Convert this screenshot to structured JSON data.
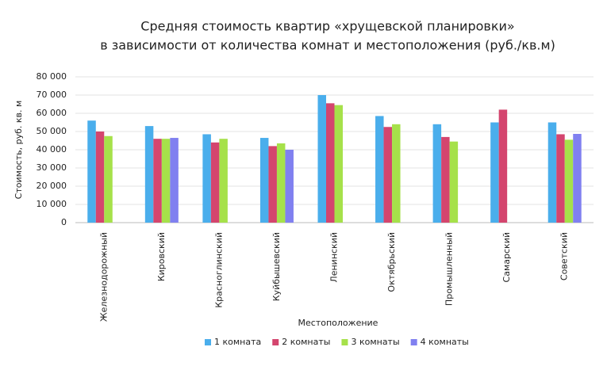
{
  "chart_data": {
    "type": "bar",
    "title": [
      "Средняя стоимость квартир «хрущевской планировки»",
      "в зависимости от количества комнат и местоположения (руб./кв.м)"
    ],
    "x_label": "Местоположение",
    "y_label": "Стоимость, руб. кв. м",
    "categories": [
      "Железнодорожный",
      "Кировский",
      "Красноглинский",
      "Куйбышевский",
      "Ленинский",
      "Октябрьский",
      "Промышленный",
      "Самарский",
      "Советский"
    ],
    "series": [
      {
        "name": "1 комната",
        "color": "#4aaeec",
        "values": [
          56000,
          53000,
          48500,
          46500,
          70000,
          58500,
          54000,
          55000,
          55000
        ]
      },
      {
        "name": "2 комнаты",
        "color": "#d4456e",
        "values": [
          50000,
          46000,
          44000,
          42000,
          65500,
          52500,
          47000,
          62000,
          48500
        ]
      },
      {
        "name": "3 комнаты",
        "color": "#a6e14a",
        "values": [
          47500,
          46000,
          46000,
          43500,
          64500,
          54000,
          44500,
          null,
          45500
        ]
      },
      {
        "name": "4 комнаты",
        "color": "#8080f0",
        "values": [
          null,
          46500,
          null,
          40000,
          null,
          null,
          null,
          null,
          48700
        ]
      }
    ],
    "ylim": [
      0,
      80000
    ],
    "yticks": [
      0,
      {
        "value": 10000,
        "label": "10 000"
      },
      {
        "value": 20000,
        "label": "20 000"
      },
      {
        "value": 30000,
        "label": "30 000"
      },
      {
        "value": 40000,
        "label": "40 000"
      },
      {
        "value": 50000,
        "label": "50 000"
      },
      {
        "value": 60000,
        "label": "60 000"
      },
      {
        "value": 70000,
        "label": "70 000"
      },
      {
        "value": 80000,
        "label": "80 000"
      }
    ],
    "grid": true,
    "legend": "bottom"
  }
}
